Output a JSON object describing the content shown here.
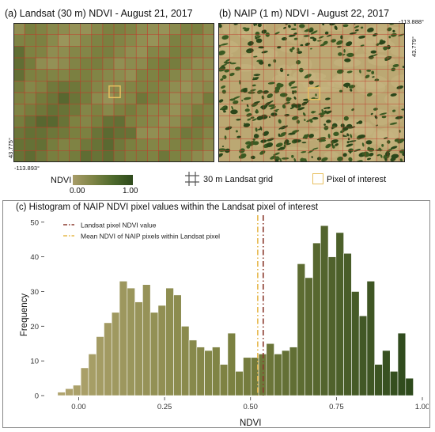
{
  "panels": {
    "a": {
      "title": "(a) Landsat (30 m) NDVI - August 21, 2017",
      "coord_lat": "43.775°",
      "coord_lon": "-113.893°"
    },
    "b": {
      "title": "(b) NAIP (1 m) NDVI - August 22, 2017",
      "coord_lon": "-113.888°",
      "coord_lat": "43.779°"
    }
  },
  "legend": {
    "ndvi_label": "NDVI",
    "ndvi_min": "0.00",
    "ndvi_max": "1.00",
    "grid_label": "30 m Landsat grid",
    "pixel_label": "Pixel of interest"
  },
  "colors": {
    "ndvi_low": "#9e9462",
    "ndvi_mid": "#6e7a3e",
    "ndvi_high": "#2e4a1c",
    "grid_line": "#c0392b",
    "pixel_box": "#e8c060",
    "landsat_line": "#8b3a2e",
    "mean_line": "#e6b84c"
  },
  "chart_data": {
    "type": "bar",
    "title": "(c) Histogram of NAIP NDVI pixel values within the Landsat pixel of interest",
    "xlabel": "NDVI",
    "ylabel": "Frequency",
    "xlim": [
      -0.1,
      1.0
    ],
    "ylim": [
      0,
      52
    ],
    "xticks": [
      "0.00",
      "0.25",
      "0.50",
      "0.75",
      "1.00"
    ],
    "xtick_values": [
      0,
      0.25,
      0.5,
      0.75,
      1.0
    ],
    "yticks": [
      "0",
      "10",
      "20",
      "30",
      "40",
      "50"
    ],
    "ytick_values": [
      0,
      10,
      20,
      30,
      40,
      50
    ],
    "bin_width": 0.0225,
    "bins_x": [
      -0.05,
      -0.0275,
      -0.005,
      0.0175,
      0.04,
      0.0625,
      0.085,
      0.1075,
      0.13,
      0.1525,
      0.175,
      0.1975,
      0.22,
      0.2425,
      0.265,
      0.2875,
      0.31,
      0.3325,
      0.355,
      0.3775,
      0.4,
      0.4225,
      0.445,
      0.4675,
      0.49,
      0.5125,
      0.535,
      0.5575,
      0.58,
      0.6025,
      0.625,
      0.6475,
      0.67,
      0.6925,
      0.715,
      0.7375,
      0.76,
      0.7825,
      0.805,
      0.8275,
      0.85,
      0.8725,
      0.895,
      0.9175,
      0.94,
      0.9625
    ],
    "values": [
      1,
      2,
      3,
      8,
      12,
      17,
      21,
      24,
      33,
      31,
      27,
      32,
      24,
      26,
      31,
      29,
      20,
      16,
      14,
      13,
      14,
      9,
      18,
      7,
      11,
      11,
      12,
      15,
      12,
      13,
      14,
      38,
      34,
      44,
      49,
      40,
      47,
      41,
      30,
      23,
      33,
      9,
      13,
      7,
      18,
      5
    ],
    "reference_lines": {
      "landsat_ndvi": {
        "label": "Landsat pixel NDVI value",
        "x": 0.537
      },
      "naip_mean": {
        "label": "Mean NDVI of NAIP pixels within Landsat pixel",
        "x": 0.521
      }
    }
  }
}
